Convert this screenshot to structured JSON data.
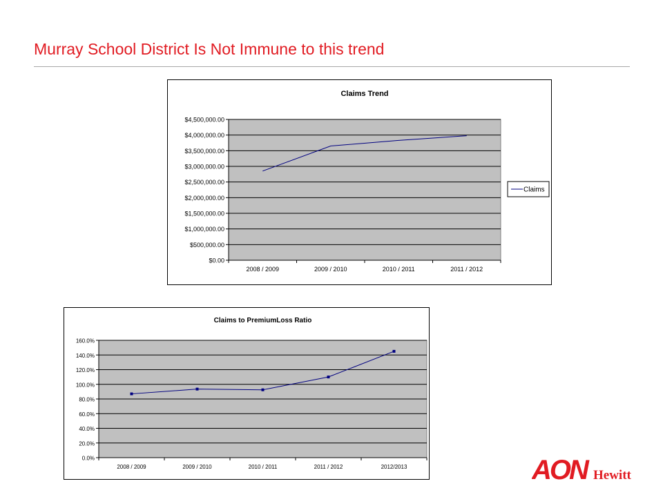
{
  "slide": {
    "title": "Murray School District Is Not Immune to this trend"
  },
  "logo": {
    "text_main": "AON",
    "text_sub": "Hewitt"
  },
  "chart_data": [
    {
      "type": "line",
      "title": "Claims Trend",
      "categories": [
        "2008 / 2009",
        "2009 / 2010",
        "2010 / 2011",
        "2011 / 2012"
      ],
      "series": [
        {
          "name": "Claims",
          "values": [
            2850000,
            3650000,
            3830000,
            3980000
          ],
          "color": "#000080",
          "markers": false
        }
      ],
      "y_ticks": [
        0,
        500000,
        1000000,
        1500000,
        2000000,
        2500000,
        3000000,
        3500000,
        4000000,
        4500000
      ],
      "y_tick_labels": [
        "$0.00",
        "$500,000.00",
        "$1,000,000.00",
        "$1,500,000.00",
        "$2,000,000.00",
        "$2,500,000.00",
        "$3,000,000.00",
        "$3,500,000.00",
        "$4,000,000.00",
        "$4,500,000.00"
      ],
      "ylim": [
        0,
        4500000
      ],
      "xlabel": "",
      "ylabel": "",
      "grid": true,
      "plot_background": "#c0c0c0",
      "legend": "right"
    },
    {
      "type": "line",
      "title": "Claims to PremiumLoss Ratio",
      "categories": [
        "2008 / 2009",
        "2009 / 2010",
        "2010 / 2011",
        "2011 / 2012",
        "2012/2013"
      ],
      "series": [
        {
          "values": [
            87,
            93.5,
            92.5,
            110,
            145
          ],
          "color": "#000080",
          "markers": true
        }
      ],
      "y_ticks": [
        0,
        20,
        40,
        60,
        80,
        100,
        120,
        140,
        160
      ],
      "y_tick_labels": [
        "0.0%",
        "20.0%",
        "40.0%",
        "60.0%",
        "80.0%",
        "100.0%",
        "120.0%",
        "140.0%",
        "160.0%"
      ],
      "ylim": [
        0,
        160
      ],
      "xlabel": "",
      "ylabel": "",
      "grid": true,
      "plot_background": "#c0c0c0",
      "legend": "none"
    }
  ],
  "colors": {
    "title": "#e11b22",
    "logo": "#e11b22",
    "plot_background": "#c0c0c0",
    "series_line": "#000080"
  }
}
